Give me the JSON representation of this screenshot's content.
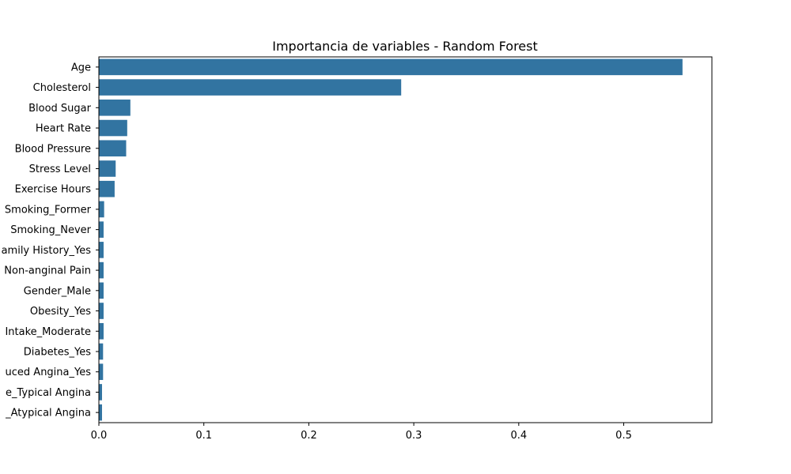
{
  "chart_data": {
    "type": "bar",
    "orientation": "horizontal",
    "title": "Importancia de variables - Random Forest",
    "xlabel": "",
    "ylabel": "",
    "categories": [
      "Age",
      "Cholesterol",
      "Blood Sugar",
      "Heart Rate",
      "Blood Pressure",
      "Stress Level",
      "Exercise Hours",
      "Smoking_Former",
      "Smoking_Never",
      "amily History_Yes",
      "Non-anginal Pain",
      "Gender_Male",
      "Obesity_Yes",
      "Intake_Moderate",
      "Diabetes_Yes",
      "uced Angina_Yes",
      "e_Typical Angina",
      "_Atypical Angina"
    ],
    "values": [
      0.556,
      0.288,
      0.03,
      0.027,
      0.026,
      0.016,
      0.015,
      0.005,
      0.0045,
      0.0045,
      0.0045,
      0.0045,
      0.0045,
      0.0045,
      0.004,
      0.004,
      0.003,
      0.003
    ],
    "xlim": [
      0,
      0.584
    ],
    "xticks": [
      "0.0",
      "0.1",
      "0.2",
      "0.3",
      "0.4",
      "0.5"
    ],
    "grid": false,
    "bar_color": "#3274a1"
  }
}
